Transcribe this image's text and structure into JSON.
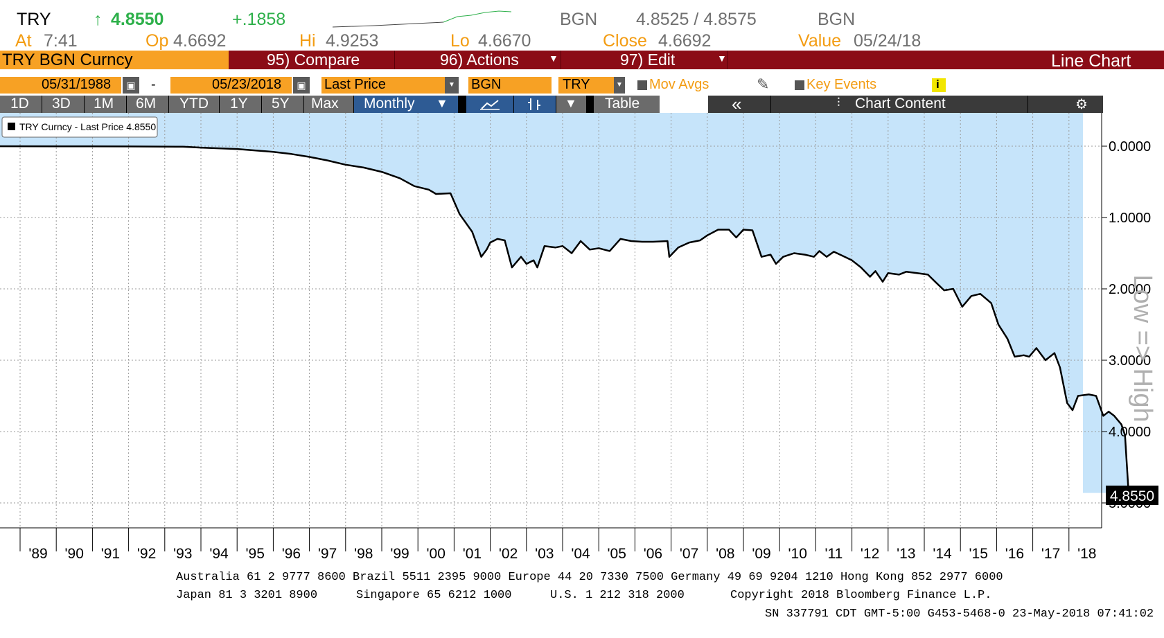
{
  "quote": {
    "ticker": "TRY",
    "arrow": "↑",
    "last": "4.8550",
    "change": "+.1858",
    "source1": "BGN",
    "bid_ask": "4.8525 / 4.8575",
    "source2": "BGN",
    "at_label": "At",
    "at_value": "7:41",
    "op_label": "Op",
    "op_value": "4.6692",
    "hi_label": "Hi",
    "hi_value": "4.9253",
    "lo_label": "Lo",
    "lo_value": "4.6670",
    "close_label": "Close",
    "close_value": "4.6692",
    "value_label": "Value",
    "value_value": "05/24/18"
  },
  "toolbar": {
    "security": "TRY BGN Curncy",
    "compare": "95) Compare",
    "actions": "96) Actions",
    "edit": "97) Edit",
    "view": "Line Chart",
    "start_date": "05/31/1988",
    "dash": "-",
    "end_date": "05/23/2018",
    "field": "Last Price",
    "source": "BGN",
    "currency": "TRY",
    "mov_avgs": "Mov Avgs",
    "key_events": "Key Events",
    "info": "i",
    "periods": [
      "1D",
      "3D",
      "1M",
      "6M",
      "YTD",
      "1Y",
      "5Y",
      "Max"
    ],
    "frequency": "Monthly",
    "table": "Table",
    "collapse": "«",
    "chart_content": "Chart Content",
    "settings": "⚙"
  },
  "chart_data": {
    "type": "area",
    "legend": "TRY Curncy - Last Price 4.8550",
    "ylabel": "Low => High",
    "y_inverted": true,
    "ylim": [
      -0.05,
      5.0
    ],
    "y_ticks": [
      "0.0000",
      "1.0000",
      "2.0000",
      "3.0000",
      "4.0000",
      "5.0000"
    ],
    "last_value_label": "4.8550",
    "x_ticks": [
      "'89",
      "'90",
      "'91",
      "'92",
      "'93",
      "'94",
      "'95",
      "'96",
      "'97",
      "'98",
      "'99",
      "'00",
      "'01",
      "'02",
      "'03",
      "'04",
      "'05",
      "'06",
      "'07",
      "'08",
      "'09",
      "'10",
      "'11",
      "'12",
      "'13",
      "'14",
      "'15",
      "'16",
      "'17",
      "'18"
    ],
    "grid": true,
    "series": [
      {
        "name": "TRY Curncy - Last Price",
        "points": [
          [
            1988.42,
            0.001
          ],
          [
            1990.0,
            0.002
          ],
          [
            1992.0,
            0.004
          ],
          [
            1993.5,
            0.008
          ],
          [
            1994.0,
            0.02
          ],
          [
            1995.0,
            0.04
          ],
          [
            1996.0,
            0.08
          ],
          [
            1996.5,
            0.11
          ],
          [
            1997.0,
            0.15
          ],
          [
            1997.5,
            0.2
          ],
          [
            1998.0,
            0.26
          ],
          [
            1998.5,
            0.3
          ],
          [
            1999.0,
            0.36
          ],
          [
            1999.5,
            0.45
          ],
          [
            1999.9,
            0.56
          ],
          [
            2000.3,
            0.61
          ],
          [
            2000.5,
            0.67
          ],
          [
            2000.9,
            0.66
          ],
          [
            2001.15,
            0.95
          ],
          [
            2001.5,
            1.2
          ],
          [
            2001.75,
            1.55
          ],
          [
            2001.9,
            1.45
          ],
          [
            2002.0,
            1.35
          ],
          [
            2002.2,
            1.3
          ],
          [
            2002.4,
            1.32
          ],
          [
            2002.6,
            1.7
          ],
          [
            2002.85,
            1.55
          ],
          [
            2003.0,
            1.65
          ],
          [
            2003.2,
            1.6
          ],
          [
            2003.3,
            1.7
          ],
          [
            2003.5,
            1.4
          ],
          [
            2003.8,
            1.42
          ],
          [
            2004.0,
            1.4
          ],
          [
            2004.25,
            1.5
          ],
          [
            2004.5,
            1.33
          ],
          [
            2004.75,
            1.45
          ],
          [
            2005.0,
            1.43
          ],
          [
            2005.3,
            1.47
          ],
          [
            2005.6,
            1.3
          ],
          [
            2005.9,
            1.33
          ],
          [
            2006.2,
            1.34
          ],
          [
            2006.5,
            1.34
          ],
          [
            2006.9,
            1.33
          ],
          [
            2006.95,
            1.55
          ],
          [
            2007.2,
            1.42
          ],
          [
            2007.5,
            1.35
          ],
          [
            2007.8,
            1.32
          ],
          [
            2008.0,
            1.25
          ],
          [
            2008.3,
            1.17
          ],
          [
            2008.6,
            1.17
          ],
          [
            2008.8,
            1.28
          ],
          [
            2009.0,
            1.17
          ],
          [
            2009.25,
            1.18
          ],
          [
            2009.5,
            1.55
          ],
          [
            2009.75,
            1.52
          ],
          [
            2009.9,
            1.65
          ],
          [
            2010.1,
            1.55
          ],
          [
            2010.4,
            1.5
          ],
          [
            2010.7,
            1.52
          ],
          [
            2010.95,
            1.55
          ],
          [
            2011.1,
            1.47
          ],
          [
            2011.3,
            1.55
          ],
          [
            2011.5,
            1.48
          ],
          [
            2011.8,
            1.55
          ],
          [
            2012.0,
            1.6
          ],
          [
            2012.25,
            1.7
          ],
          [
            2012.5,
            1.83
          ],
          [
            2012.65,
            1.75
          ],
          [
            2012.85,
            1.9
          ],
          [
            2013.0,
            1.78
          ],
          [
            2013.3,
            1.8
          ],
          [
            2013.5,
            1.76
          ],
          [
            2013.8,
            1.78
          ],
          [
            2014.1,
            1.8
          ],
          [
            2014.3,
            1.9
          ],
          [
            2014.55,
            2.02
          ],
          [
            2014.8,
            2.0
          ],
          [
            2015.05,
            2.25
          ],
          [
            2015.3,
            2.1
          ],
          [
            2015.55,
            2.07
          ],
          [
            2015.85,
            2.2
          ],
          [
            2016.05,
            2.5
          ],
          [
            2016.3,
            2.7
          ],
          [
            2016.5,
            2.95
          ],
          [
            2016.75,
            2.93
          ],
          [
            2016.9,
            2.95
          ],
          [
            2017.1,
            2.83
          ],
          [
            2017.35,
            3.0
          ],
          [
            2017.6,
            2.9
          ],
          [
            2017.75,
            3.1
          ],
          [
            2017.95,
            3.6
          ],
          [
            2018.1,
            3.7
          ],
          [
            2018.25,
            3.5
          ],
          [
            2018.55,
            3.48
          ],
          [
            2018.75,
            3.5
          ],
          [
            2018.95,
            3.78
          ],
          [
            2019.1,
            3.72
          ],
          [
            2019.25,
            3.78
          ],
          [
            2019.45,
            3.9
          ],
          [
            2019.55,
            4.05
          ],
          [
            2019.65,
            4.86
          ]
        ]
      }
    ]
  },
  "footer": {
    "line1": "Australia 61 2 9777 8600 Brazil 5511 2395 9000 Europe 44 20 7330 7500 Germany 49 69 9204 1210 Hong Kong 852 2977 6000",
    "line2_a": "Japan 81 3 3201 8900",
    "line2_b": "Singapore 65 6212 1000",
    "line2_c": "U.S. 1 212 318 2000",
    "line2_d": "Copyright 2018 Bloomberg Finance L.P.",
    "line3": "SN 337791 CDT  GMT-5:00 G453-5468-0 23-May-2018 07:41:02"
  },
  "colors": {
    "toolbar_red": "#8b0c16",
    "toolbar_orange": "#f7a124",
    "period_gray": "#6b6b6b",
    "selected_blue": "#2e5b94",
    "area_fill": "#c6e4fa",
    "line": "#000000",
    "up_green": "#2db04a",
    "label_orange": "#f39c12"
  }
}
